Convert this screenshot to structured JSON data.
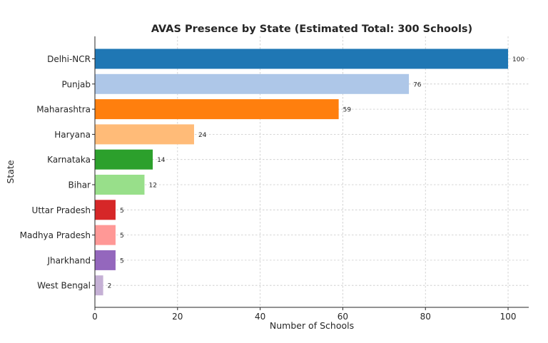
{
  "chart_data": {
    "type": "bar",
    "orientation": "horizontal",
    "title": "AVAS Presence by State (Estimated Total: 300 Schools)",
    "xlabel": "Number of Schools",
    "ylabel": "State",
    "xlim": [
      0,
      105
    ],
    "xticks": [
      0,
      20,
      40,
      60,
      80,
      100
    ],
    "grid": true,
    "categories": [
      "Delhi-NCR",
      "Punjab",
      "Maharashtra",
      "Haryana",
      "Karnataka",
      "Bihar",
      "Uttar Pradesh",
      "Madhya Pradesh",
      "Jharkhand",
      "West Bengal"
    ],
    "values": [
      100,
      76,
      59,
      24,
      14,
      12,
      5,
      5,
      5,
      2
    ],
    "colors": [
      "#1f77b4",
      "#aec7e8",
      "#ff7f0e",
      "#ffbb78",
      "#2ca02c",
      "#98df8a",
      "#d62728",
      "#ff9896",
      "#9467bd",
      "#c5b0d5"
    ],
    "data_labels": [
      "100",
      "76",
      "59",
      "24",
      "14",
      "12",
      "5",
      "5",
      "5",
      "2"
    ]
  }
}
